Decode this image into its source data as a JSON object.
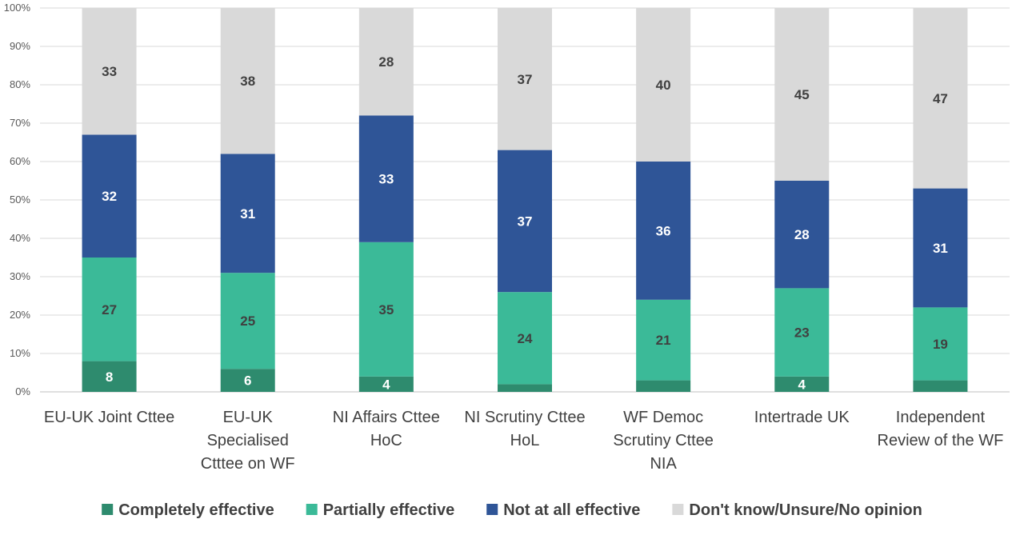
{
  "chart_data": {
    "type": "bar",
    "stacked": true,
    "percent_stacked": true,
    "categories": [
      [
        "EU-UK Joint Cttee"
      ],
      [
        "EU-UK",
        "Specialised",
        "Ctttee on  WF"
      ],
      [
        "NI Affairs Cttee",
        "HoC"
      ],
      [
        "NI Scrutiny Cttee",
        "HoL"
      ],
      [
        "WF Democ",
        "Scrutiny Cttee",
        "NIA"
      ],
      [
        "Intertrade UK"
      ],
      [
        "Independent",
        "Review of the WF"
      ]
    ],
    "series": [
      {
        "name": "Completely effective",
        "color": "#2e8b6e",
        "label_color": "#ffffff",
        "values": [
          8,
          6,
          4,
          2,
          3,
          4,
          3
        ],
        "labels": [
          "8",
          "6",
          "4",
          "",
          "",
          "4",
          ""
        ]
      },
      {
        "name": "Partially effective",
        "color": "#3bba98",
        "label_color": "#404040",
        "values": [
          27,
          25,
          35,
          24,
          21,
          23,
          19
        ],
        "labels": [
          "27",
          "25",
          "35",
          "24",
          "21",
          "23",
          "19"
        ]
      },
      {
        "name": "Not at all effective",
        "color": "#2f5597",
        "label_color": "#ffffff",
        "values": [
          32,
          31,
          33,
          37,
          36,
          28,
          31
        ],
        "labels": [
          "32",
          "31",
          "33",
          "37",
          "36",
          "28",
          "31"
        ]
      },
      {
        "name": "Don't know/Unsure/No opinion",
        "color": "#d9d9d9",
        "label_color": "#404040",
        "values": [
          33,
          38,
          28,
          37,
          40,
          45,
          47
        ],
        "labels": [
          "33",
          "38",
          "28",
          "37",
          "40",
          "45",
          "47"
        ]
      }
    ],
    "yticks": [
      "0%",
      "10%",
      "20%",
      "30%",
      "40%",
      "50%",
      "60%",
      "70%",
      "80%",
      "90%",
      "100%"
    ],
    "ylim": [
      0,
      100
    ],
    "grid": true,
    "legend_position": "bottom",
    "title": "",
    "xlabel": "",
    "ylabel": ""
  }
}
